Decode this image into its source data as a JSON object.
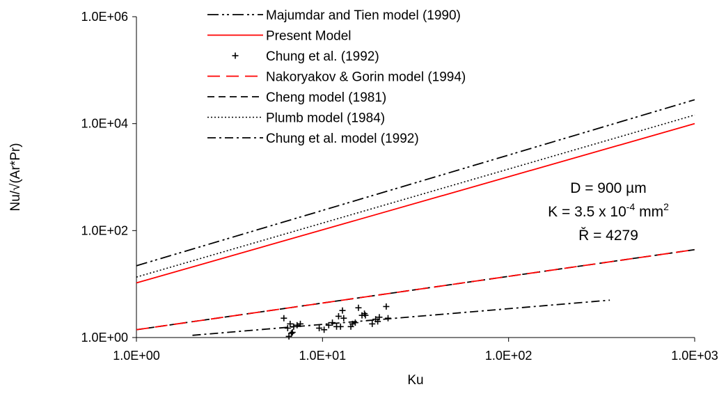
{
  "chart_data": {
    "type": "line",
    "title": "",
    "xlabel": "Ku",
    "ylabel": "Nu/√(Ar*Pr)",
    "xscale": "log",
    "yscale": "log",
    "xlim": [
      1,
      1000
    ],
    "ylim": [
      1,
      1000000
    ],
    "x_ticks": [
      1,
      10,
      100,
      1000
    ],
    "x_tick_labels": [
      "1.0E+00",
      "1.0E+01",
      "1.0E+02",
      "1.0E+03"
    ],
    "y_ticks": [
      1,
      100,
      10000,
      1000000
    ],
    "y_tick_labels": [
      "1.0E+00",
      "1.0E+02",
      "1.0E+04",
      "1.0E+06"
    ],
    "grid": false,
    "legend_position": "top-center",
    "series": [
      {
        "name": "Majumdar and Tien model (1990)",
        "kind": "line",
        "color": "#000000",
        "dash": "dash-dot-dot",
        "x": [
          1,
          1000
        ],
        "y": [
          22,
          28000
        ]
      },
      {
        "name": "Present Model",
        "kind": "line",
        "color": "#ff0000",
        "dash": "solid",
        "x": [
          1,
          1000
        ],
        "y": [
          10.5,
          10000
        ]
      },
      {
        "name": "Chung et al. (1992)",
        "kind": "scatter",
        "color": "#000000",
        "marker": "plus",
        "x": [
          6.2,
          6.5,
          6.7,
          6.8,
          7.0,
          7.3,
          7.6,
          9.6,
          10.2,
          10.8,
          11.3,
          11.9,
          12.2,
          12.5,
          12.8,
          13.0,
          14.2,
          14.5,
          15.0,
          15.6,
          16.3,
          16.8,
          17.0,
          18.5,
          19.3,
          19.8,
          20.2,
          22.0,
          22.5,
          6.6,
          6.9
        ],
        "y": [
          2.3,
          1.5,
          1.8,
          1.2,
          1.6,
          1.7,
          1.8,
          1.5,
          1.4,
          1.7,
          1.9,
          1.6,
          2.5,
          1.6,
          3.2,
          2.3,
          1.6,
          1.8,
          1.9,
          3.6,
          2.6,
          2.8,
          2.6,
          1.8,
          2.2,
          2.0,
          2.4,
          3.8,
          2.3,
          1.05,
          1.25
        ]
      },
      {
        "name": "Nakoryakov & Gorin model (1994)",
        "kind": "line",
        "color": "#ff0000",
        "dash": "long-dash",
        "x": [
          1,
          1000
        ],
        "y": [
          1.4,
          44
        ]
      },
      {
        "name": "Cheng model (1981)",
        "kind": "line",
        "color": "#000000",
        "dash": "dash",
        "x": [
          1,
          1000
        ],
        "y": [
          1.4,
          44
        ]
      },
      {
        "name": "Plumb model (1984)",
        "kind": "line",
        "color": "#000000",
        "dash": "dot",
        "x": [
          1,
          1000
        ],
        "y": [
          13.5,
          14500
        ]
      },
      {
        "name": "Chung et al. model (1992)",
        "kind": "line",
        "color": "#000000",
        "dash": "dash-dot",
        "x": [
          2,
          350
        ],
        "y": [
          1.1,
          5.0
        ]
      }
    ],
    "annotations": {
      "line1": "D = 900 µm",
      "line2_pre": "K = 3.5 x 10",
      "line2_exp": "-4",
      "line2_unit": " mm",
      "line2_sup": "2",
      "line3": "Ř = 4279"
    }
  }
}
